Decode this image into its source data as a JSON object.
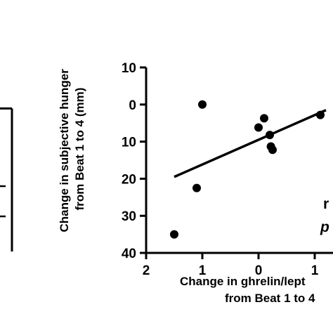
{
  "chart_data": [
    {
      "type": "bar",
      "note_visible": "left panel cropped; only the right edge of one bar is visible",
      "values": [
        30
      ],
      "ylim": [
        0,
        40
      ],
      "title": "",
      "xlabel": "",
      "ylabel": ""
    },
    {
      "type": "scatter",
      "title": "",
      "ylabel": [
        "Change in subjective hunger",
        "from Beat 1 to 4 (mm)"
      ],
      "xlabel": [
        "Change in ghrelin/lept",
        "from Beat 1 to 4"
      ],
      "xlim": [
        -2,
        2
      ],
      "ylim": [
        -10,
        40
      ],
      "y_inverted": true,
      "x_inverted": true,
      "x_ticks": [
        -2,
        -1,
        0,
        1
      ],
      "x_tick_labels": [
        "2",
        "1",
        "0",
        "1"
      ],
      "y_ticks": [
        -10,
        0,
        10,
        20,
        30,
        40
      ],
      "y_tick_labels": [
        "10",
        "0",
        "10",
        "20",
        "30",
        "40"
      ],
      "points": [
        {
          "x": -1.5,
          "y": 35
        },
        {
          "x": -1.1,
          "y": 22.5
        },
        {
          "x": -1.0,
          "y": 0
        },
        {
          "x": 0.0,
          "y": 6.2
        },
        {
          "x": 0.1,
          "y": 3.7
        },
        {
          "x": 0.2,
          "y": 8.2
        },
        {
          "x": 0.22,
          "y": 11.3
        },
        {
          "x": 0.25,
          "y": 12.2
        },
        {
          "x": 1.1,
          "y": 2.8
        }
      ],
      "regression_line": {
        "x": [
          -1.5,
          1.2
        ],
        "y": [
          19.5,
          1.5
        ]
      },
      "grid": false,
      "annotations": [
        "r",
        "p"
      ]
    }
  ]
}
